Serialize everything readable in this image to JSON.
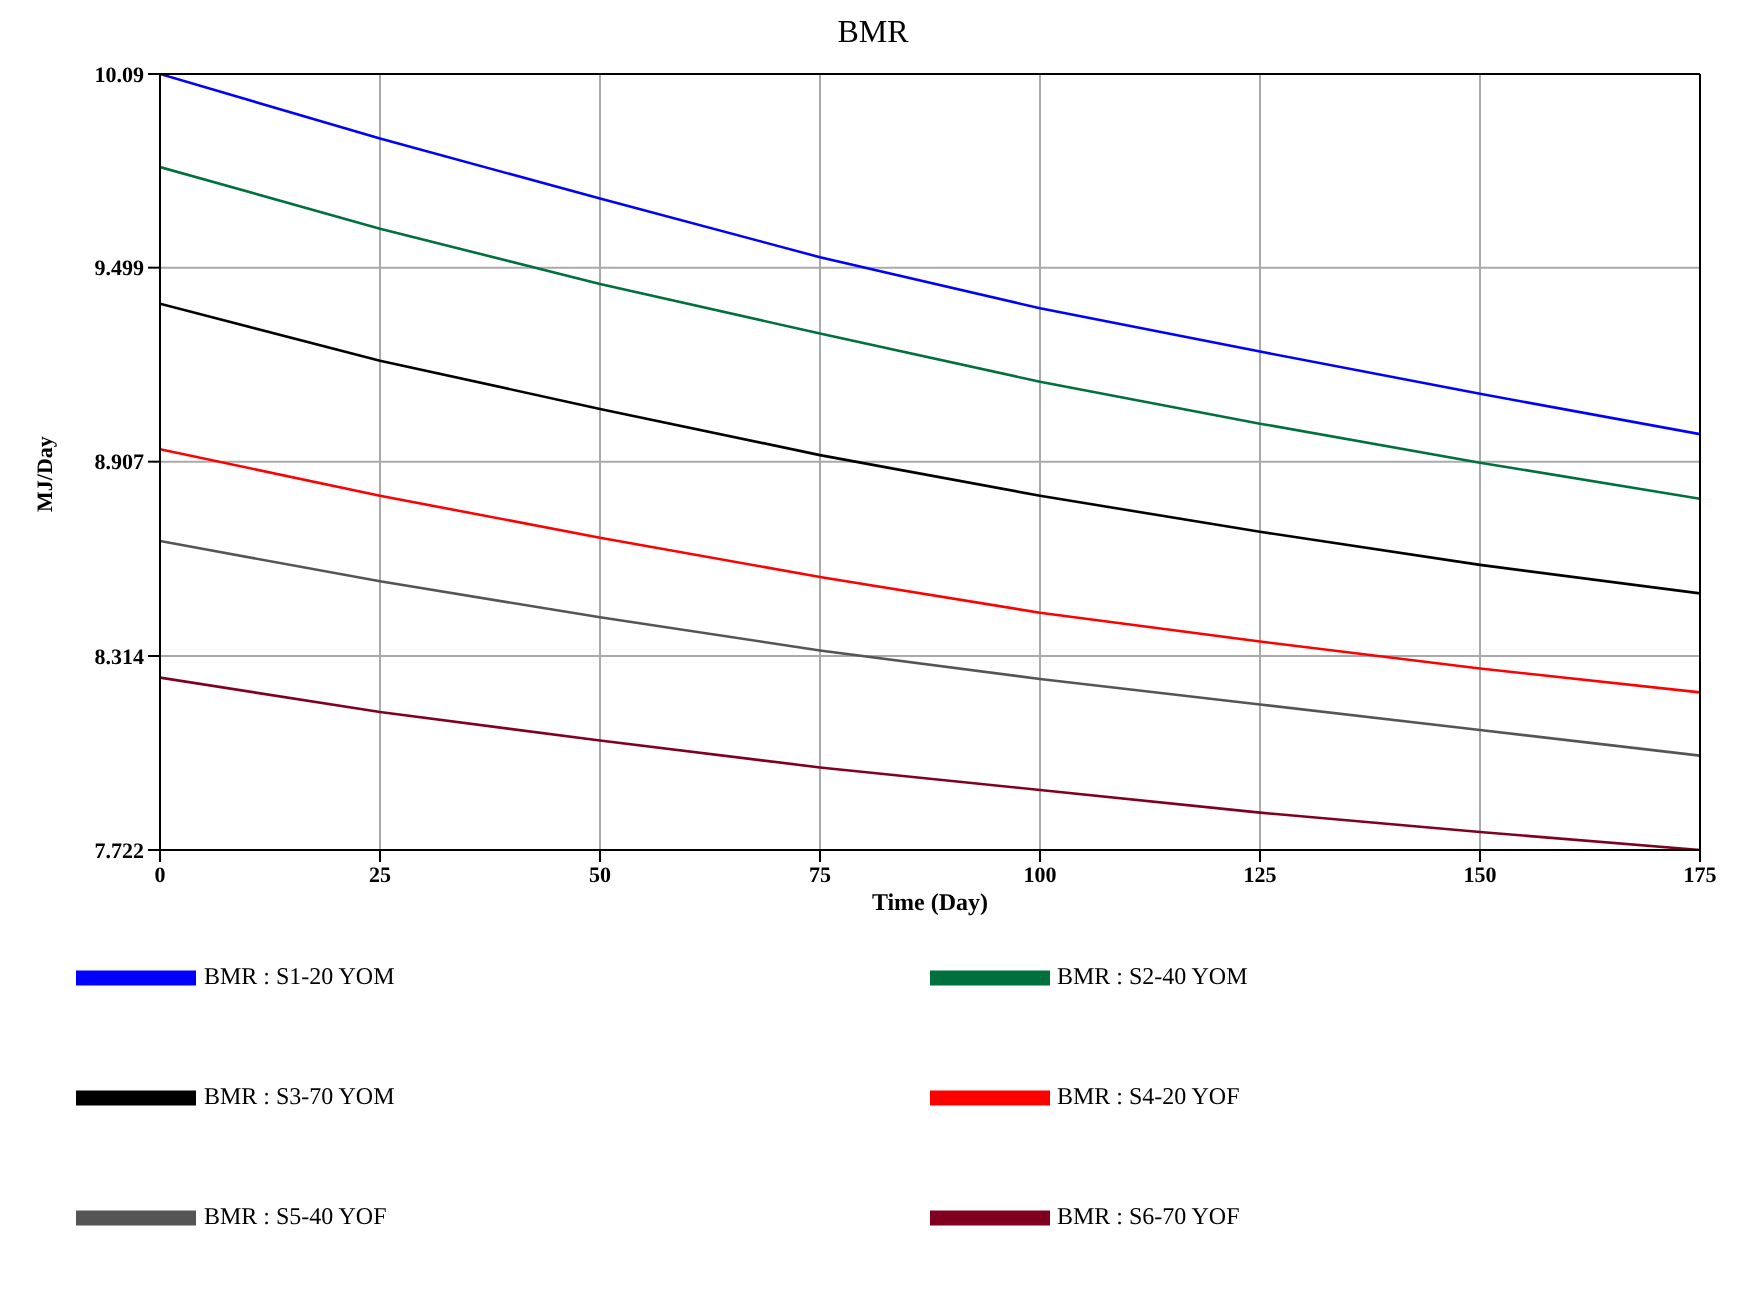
{
  "chart_data": {
    "type": "line",
    "title": "BMR",
    "xlabel": "Time (Day)",
    "ylabel": "MJ/Day",
    "x": [
      0,
      25,
      50,
      75,
      100,
      125,
      150,
      175
    ],
    "series": [
      {
        "name": "BMR : S1-20 YOM",
        "color": "#0000ff",
        "values": [
          10.09,
          9.893,
          9.71,
          9.531,
          9.375,
          9.243,
          9.114,
          8.991
        ]
      },
      {
        "name": "BMR : S5-40 YOF",
        "color": "#555555",
        "values": [
          8.665,
          8.542,
          8.432,
          8.331,
          8.244,
          8.166,
          8.088,
          8.01
        ]
      },
      {
        "name": "BMR : S4-20 YOF",
        "color": "#ff0000",
        "values": [
          8.945,
          8.803,
          8.675,
          8.555,
          8.446,
          8.358,
          8.276,
          8.203
        ]
      },
      {
        "name": "BMR : S3-70 YOM",
        "color": "#000000",
        "values": [
          9.389,
          9.215,
          9.068,
          8.927,
          8.803,
          8.693,
          8.592,
          8.505
        ]
      },
      {
        "name": "BMR : S2-40 YOM",
        "color": "#00703c",
        "values": [
          9.806,
          9.618,
          9.449,
          9.298,
          9.151,
          9.023,
          8.904,
          8.794
        ]
      },
      {
        "name": "BMR : S6-70 YOF",
        "color": "#800020",
        "values": [
          8.248,
          8.143,
          8.056,
          7.974,
          7.905,
          7.836,
          7.777,
          7.722
        ]
      }
    ],
    "xlim": [
      0,
      175
    ],
    "xticks": [
      0,
      25,
      50,
      75,
      100,
      125,
      150,
      175
    ],
    "ylim": [
      7.722,
      10.09
    ],
    "yticks": [
      7.722,
      8.314,
      8.907,
      9.499,
      10.09
    ],
    "grid": true,
    "legend": "bottom",
    "marker": "none",
    "line_style": "solid"
  }
}
